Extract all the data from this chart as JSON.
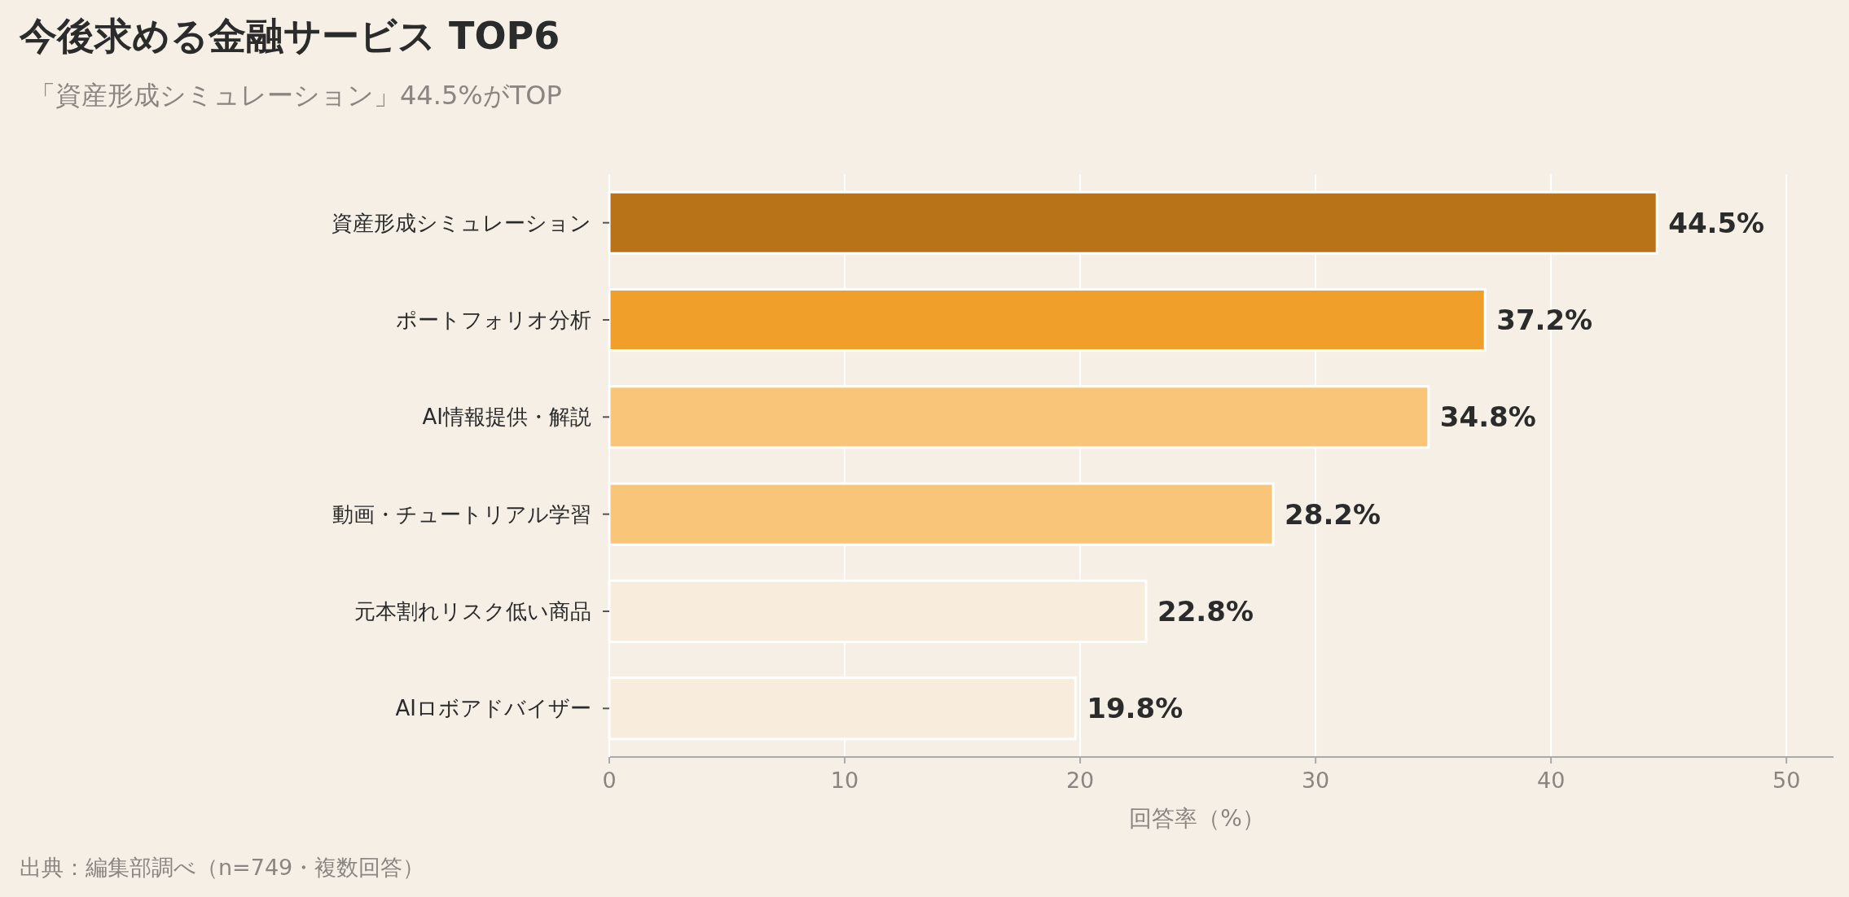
{
  "chart_data": {
    "type": "bar",
    "orientation": "horizontal",
    "title": "今後求める金融サービス TOP6",
    "subtitle": "「資産形成シミュレーション」44.5%がTOP",
    "xlabel": "回答率（%）",
    "annotations": [
      "出典：編集部調べ（n=749・複数回答）"
    ],
    "categories": [
      "資産形成シミュレーション",
      "ポートフォリオ分析",
      "AI情報提供・解説",
      "動画・チュートリアル学習",
      "元本割れリスク低い商品",
      "AIロボアドバイザー"
    ],
    "values": [
      44.5,
      37.2,
      34.8,
      28.2,
      22.8,
      19.8
    ],
    "colors": [
      "#b87318",
      "#f0a02a",
      "#f9c679",
      "#f9c679",
      "#f8ecdc",
      "#f8ecdc"
    ],
    "value_labels": [
      "44.5%",
      "37.2%",
      "34.8%",
      "28.2%",
      "22.8%",
      "19.8%"
    ],
    "xlim": [
      0,
      52
    ],
    "xticks": [
      0,
      10,
      20,
      30,
      40,
      50
    ],
    "grid": "x"
  }
}
